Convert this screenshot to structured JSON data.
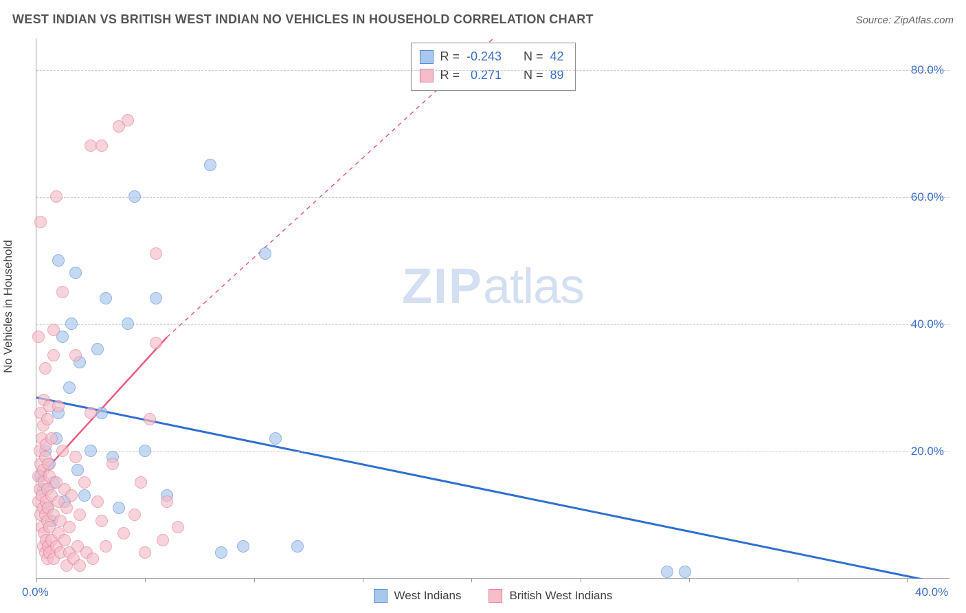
{
  "title": "WEST INDIAN VS BRITISH WEST INDIAN NO VEHICLES IN HOUSEHOLD CORRELATION CHART",
  "source": "Source: ZipAtlas.com",
  "watermark_zip": "ZIP",
  "watermark_atlas": "atlas",
  "ylabel": "No Vehicles in Household",
  "chart": {
    "type": "scatter",
    "background_color": "#ffffff",
    "grid_color": "#cccccc",
    "axis_color": "#999999",
    "ylim": [
      0,
      85
    ],
    "ytick_step": 20,
    "yticks": [
      20,
      40,
      60,
      80
    ],
    "ytick_labels": [
      "20.0%",
      "40.0%",
      "60.0%",
      "80.0%"
    ],
    "xlim": [
      0,
      42
    ],
    "xtick_step": 5,
    "xticks": [
      0,
      5,
      10,
      15,
      20,
      25,
      30,
      35,
      40
    ],
    "x_start_label": "0.0%",
    "x_end_label": "40.0%",
    "tick_label_color": "#3b6fc9",
    "tick_label_fontsize": 17,
    "marker_radius": 9,
    "marker_opacity": 0.65,
    "series": [
      {
        "name": "West Indians",
        "legend_label": "West Indians",
        "fill_color": "#a9c6ed",
        "border_color": "#5a8bd6",
        "trend": {
          "x1": 0,
          "y1": 28.5,
          "x2": 42,
          "y2": -1.0,
          "dash": false,
          "width": 3,
          "color": "#2f6fd0"
        },
        "stats": {
          "R": "-0.243",
          "N": "42"
        },
        "points": [
          [
            0.2,
            16
          ],
          [
            0.3,
            14
          ],
          [
            0.4,
            20
          ],
          [
            0.5,
            11
          ],
          [
            0.6,
            18
          ],
          [
            0.7,
            9
          ],
          [
            0.8,
            15
          ],
          [
            0.9,
            22
          ],
          [
            1.0,
            26
          ],
          [
            1.0,
            50
          ],
          [
            1.2,
            38
          ],
          [
            1.3,
            12
          ],
          [
            1.5,
            30
          ],
          [
            1.6,
            40
          ],
          [
            1.8,
            48
          ],
          [
            1.9,
            17
          ],
          [
            2.0,
            34
          ],
          [
            2.2,
            13
          ],
          [
            2.5,
            20
          ],
          [
            2.8,
            36
          ],
          [
            3.0,
            26
          ],
          [
            3.2,
            44
          ],
          [
            3.5,
            19
          ],
          [
            3.8,
            11
          ],
          [
            4.2,
            40
          ],
          [
            4.5,
            60
          ],
          [
            5.0,
            20
          ],
          [
            5.5,
            44
          ],
          [
            6.0,
            13
          ],
          [
            8.0,
            65
          ],
          [
            8.5,
            4
          ],
          [
            9.5,
            5
          ],
          [
            10.5,
            51
          ],
          [
            11.0,
            22
          ],
          [
            12.0,
            5
          ],
          [
            29.0,
            1
          ],
          [
            29.8,
            1
          ]
        ]
      },
      {
        "name": "British West Indians",
        "legend_label": "British West Indians",
        "fill_color": "#f4bdc9",
        "border_color": "#e77d94",
        "trend": {
          "x1": 0,
          "y1": 15.5,
          "x2": 6.0,
          "y2": 38.0,
          "dash_after_x": 6.0,
          "dash_to_x": 21.0,
          "dash_to_y": 85.0,
          "width": 2.5,
          "color": "#e85a7e"
        },
        "stats": {
          "R": "0.271",
          "N": "89"
        },
        "points": [
          [
            0.1,
            12
          ],
          [
            0.1,
            16
          ],
          [
            0.1,
            38
          ],
          [
            0.15,
            14
          ],
          [
            0.15,
            20
          ],
          [
            0.2,
            10
          ],
          [
            0.2,
            18
          ],
          [
            0.2,
            26
          ],
          [
            0.2,
            56
          ],
          [
            0.25,
            8
          ],
          [
            0.25,
            13
          ],
          [
            0.25,
            22
          ],
          [
            0.3,
            5
          ],
          [
            0.3,
            11
          ],
          [
            0.3,
            17
          ],
          [
            0.3,
            24
          ],
          [
            0.35,
            7
          ],
          [
            0.35,
            15
          ],
          [
            0.35,
            28
          ],
          [
            0.4,
            4
          ],
          [
            0.4,
            10
          ],
          [
            0.4,
            19
          ],
          [
            0.4,
            33
          ],
          [
            0.45,
            6
          ],
          [
            0.45,
            12
          ],
          [
            0.45,
            21
          ],
          [
            0.5,
            3
          ],
          [
            0.5,
            9
          ],
          [
            0.5,
            14
          ],
          [
            0.5,
            25
          ],
          [
            0.55,
            5
          ],
          [
            0.55,
            11
          ],
          [
            0.55,
            18
          ],
          [
            0.6,
            4
          ],
          [
            0.6,
            8
          ],
          [
            0.6,
            16
          ],
          [
            0.6,
            27
          ],
          [
            0.7,
            6
          ],
          [
            0.7,
            13
          ],
          [
            0.7,
            22
          ],
          [
            0.8,
            3
          ],
          [
            0.8,
            10
          ],
          [
            0.8,
            35
          ],
          [
            0.8,
            39
          ],
          [
            0.9,
            5
          ],
          [
            0.9,
            15
          ],
          [
            0.9,
            60
          ],
          [
            1.0,
            7
          ],
          [
            1.0,
            12
          ],
          [
            1.0,
            27
          ],
          [
            1.1,
            4
          ],
          [
            1.1,
            9
          ],
          [
            1.2,
            20
          ],
          [
            1.2,
            45
          ],
          [
            1.3,
            6
          ],
          [
            1.3,
            14
          ],
          [
            1.4,
            2
          ],
          [
            1.4,
            11
          ],
          [
            1.5,
            4
          ],
          [
            1.5,
            8
          ],
          [
            1.6,
            13
          ],
          [
            1.7,
            3
          ],
          [
            1.8,
            19
          ],
          [
            1.8,
            35
          ],
          [
            1.9,
            5
          ],
          [
            2.0,
            10
          ],
          [
            2.0,
            2
          ],
          [
            2.2,
            15
          ],
          [
            2.3,
            4
          ],
          [
            2.5,
            26
          ],
          [
            2.5,
            68
          ],
          [
            2.6,
            3
          ],
          [
            2.8,
            12
          ],
          [
            3.0,
            9
          ],
          [
            3.0,
            68
          ],
          [
            3.2,
            5
          ],
          [
            3.5,
            18
          ],
          [
            3.8,
            71
          ],
          [
            4.0,
            7
          ],
          [
            4.2,
            72
          ],
          [
            4.5,
            10
          ],
          [
            4.8,
            15
          ],
          [
            5.0,
            4
          ],
          [
            5.2,
            25
          ],
          [
            5.5,
            37
          ],
          [
            5.8,
            6
          ],
          [
            5.5,
            51
          ],
          [
            6.0,
            12
          ],
          [
            6.5,
            8
          ]
        ]
      }
    ]
  },
  "stats_box": {
    "r_label": "R =",
    "n_label": "N ="
  }
}
